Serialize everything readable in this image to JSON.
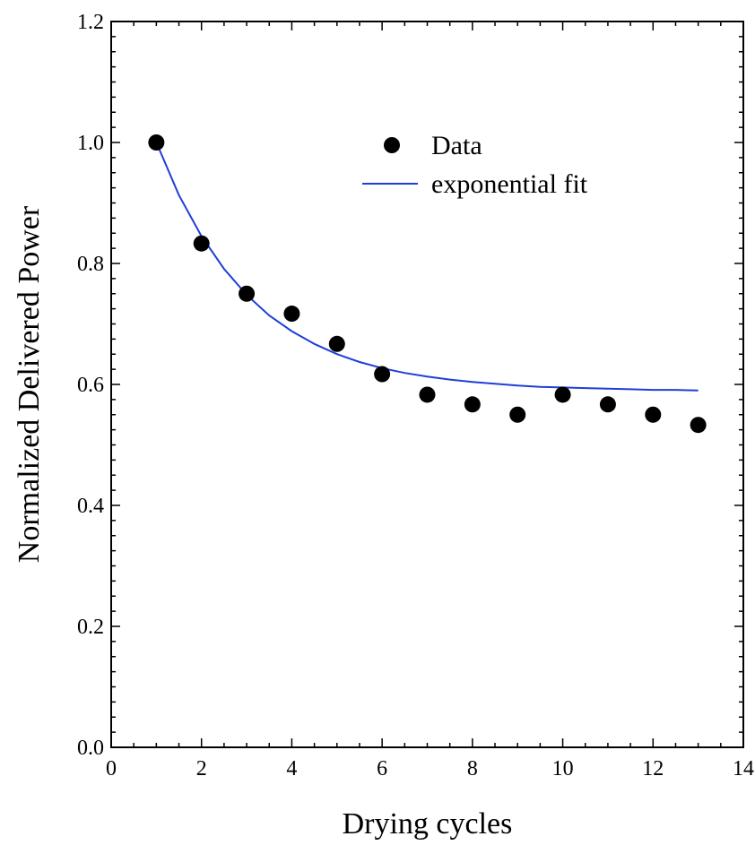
{
  "chart_data": {
    "type": "scatter",
    "xlabel": "Drying cycles",
    "ylabel": "Normalized Delivered Power",
    "xlim": [
      0,
      14
    ],
    "ylim": [
      0.0,
      1.2
    ],
    "x_ticks": [
      0,
      2,
      4,
      6,
      8,
      10,
      12,
      14
    ],
    "x_tick_labels": [
      "0",
      "2",
      "4",
      "6",
      "8",
      "10",
      "12",
      "14"
    ],
    "y_ticks": [
      0.0,
      0.2,
      0.4,
      0.6,
      0.8,
      1.0,
      1.2
    ],
    "y_tick_labels": [
      "0.0",
      "0.2",
      "0.4",
      "0.6",
      "0.8",
      "1.0",
      "1.2"
    ],
    "grid": false,
    "legend_position": "top-right",
    "series": [
      {
        "name": "Data",
        "kind": "scatter",
        "color": "#000000",
        "x": [
          1,
          2,
          3,
          4,
          5,
          6,
          7,
          8,
          9,
          10,
          11,
          12,
          13
        ],
        "y": [
          1.0,
          0.833,
          0.75,
          0.717,
          0.667,
          0.617,
          0.583,
          0.567,
          0.55,
          0.583,
          0.567,
          0.55,
          0.533
        ]
      },
      {
        "name": "exponential fit",
        "kind": "line",
        "color": "#1f3fd8",
        "x": [
          1,
          1.5,
          2,
          2.5,
          3,
          3.5,
          4,
          4.5,
          5,
          5.5,
          6,
          6.5,
          7,
          7.5,
          8,
          8.5,
          9,
          9.5,
          10,
          10.5,
          11,
          11.5,
          12,
          12.5,
          13
        ],
        "y": [
          1.0,
          0.913,
          0.845,
          0.791,
          0.748,
          0.714,
          0.688,
          0.667,
          0.65,
          0.637,
          0.627,
          0.619,
          0.613,
          0.608,
          0.604,
          0.601,
          0.598,
          0.596,
          0.595,
          0.594,
          0.593,
          0.592,
          0.591,
          0.591,
          0.59
        ]
      }
    ]
  }
}
